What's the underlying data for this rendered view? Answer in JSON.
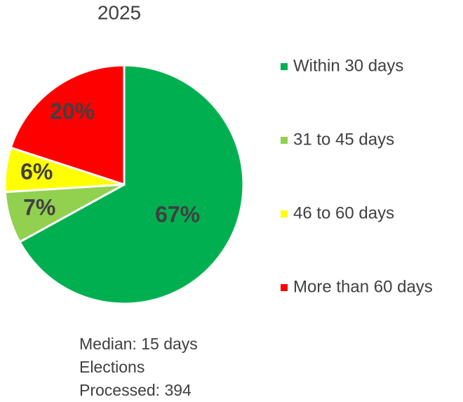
{
  "chart_data": {
    "type": "pie",
    "title": "2025",
    "categories": [
      "Within 30 days",
      "31 to 45 days",
      "46 to 60 days",
      "More than 60 days"
    ],
    "values": [
      67,
      7,
      6,
      20
    ],
    "value_labels": [
      "67%",
      "7%",
      "6%",
      "20%"
    ],
    "colors": [
      "#00b050",
      "#92d050",
      "#ffff00",
      "#ff0000"
    ],
    "annotations": [
      "Median: 15 days",
      "Elections",
      "Processed: 394"
    ]
  }
}
